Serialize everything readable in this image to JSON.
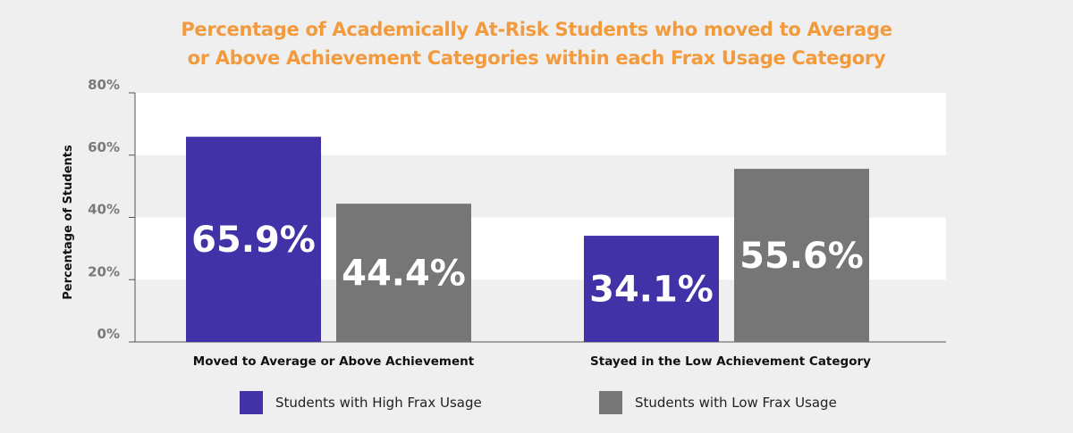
{
  "chart_data": {
    "type": "bar",
    "title_lines": [
      "Percentage of Academically At-Risk Students who moved to Average",
      "or Above Achievement Categories within each Frax Usage Category"
    ],
    "xlabel": "",
    "ylabel": "Percentage of Students",
    "ylim": [
      0,
      80
    ],
    "yticks": [
      "0%",
      "20%",
      "40%",
      "60%",
      "80%"
    ],
    "ytick_values": [
      0,
      20,
      40,
      60,
      80
    ],
    "grid": "alternating horizontal bands",
    "categories": [
      "Moved to Average or Above Achievement",
      "Stayed in the Low Achievement Category"
    ],
    "series": [
      {
        "name": "Students with High Frax Usage",
        "color": "#4232a8",
        "values": [
          65.9,
          34.1
        ],
        "labels": [
          "65.9%",
          "34.1%"
        ]
      },
      {
        "name": "Students with Low Frax Usage",
        "color": "#767676",
        "values": [
          44.4,
          55.6
        ],
        "labels": [
          "44.4%",
          "55.6%"
        ]
      }
    ],
    "legend": "bottom"
  }
}
